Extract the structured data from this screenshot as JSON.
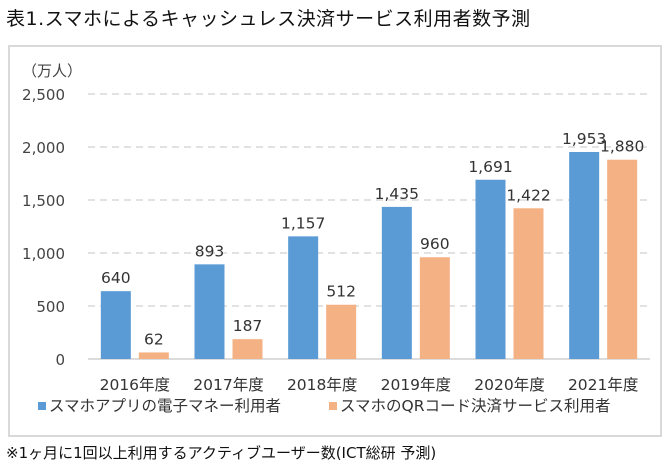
{
  "page": {
    "title": "表1.スマホによるキャッシュレス決済サービス利用者数予測",
    "footnote": "※1ヶ月に1回以上利用するアクティブユーザー数(ICT総研 予測)"
  },
  "chart_data": {
    "type": "bar",
    "title": "表1.スマホによるキャッシュレス決済サービス利用者数予測",
    "unit_label": "（万人）",
    "xlabel": "",
    "ylabel": "（万人）",
    "ylim": [
      0,
      2500
    ],
    "yticks": [
      0,
      500,
      1000,
      1500,
      2000,
      2500
    ],
    "ytick_labels": [
      "0",
      "500",
      "1,000",
      "1,500",
      "2,000",
      "2,500"
    ],
    "grid": "horizontal-dashed",
    "legend_position": "bottom",
    "categories": [
      "2016年度",
      "2017年度",
      "2018年度",
      "2019年度",
      "2020年度",
      "2021年度"
    ],
    "series": [
      {
        "name": "スマホアプリの電子マネー利用者",
        "color": "#5b9bd5",
        "values": [
          640,
          893,
          1157,
          1435,
          1691,
          1953
        ],
        "labels": [
          "640",
          "893",
          "1,157",
          "1,435",
          "1,691",
          "1,953"
        ]
      },
      {
        "name": "スマホのQRコード決済サービス利用者",
        "color": "#f4b183",
        "values": [
          62,
          187,
          512,
          960,
          1422,
          1880
        ],
        "labels": [
          "62",
          "187",
          "512",
          "960",
          "1,422",
          "1,880"
        ]
      }
    ]
  }
}
